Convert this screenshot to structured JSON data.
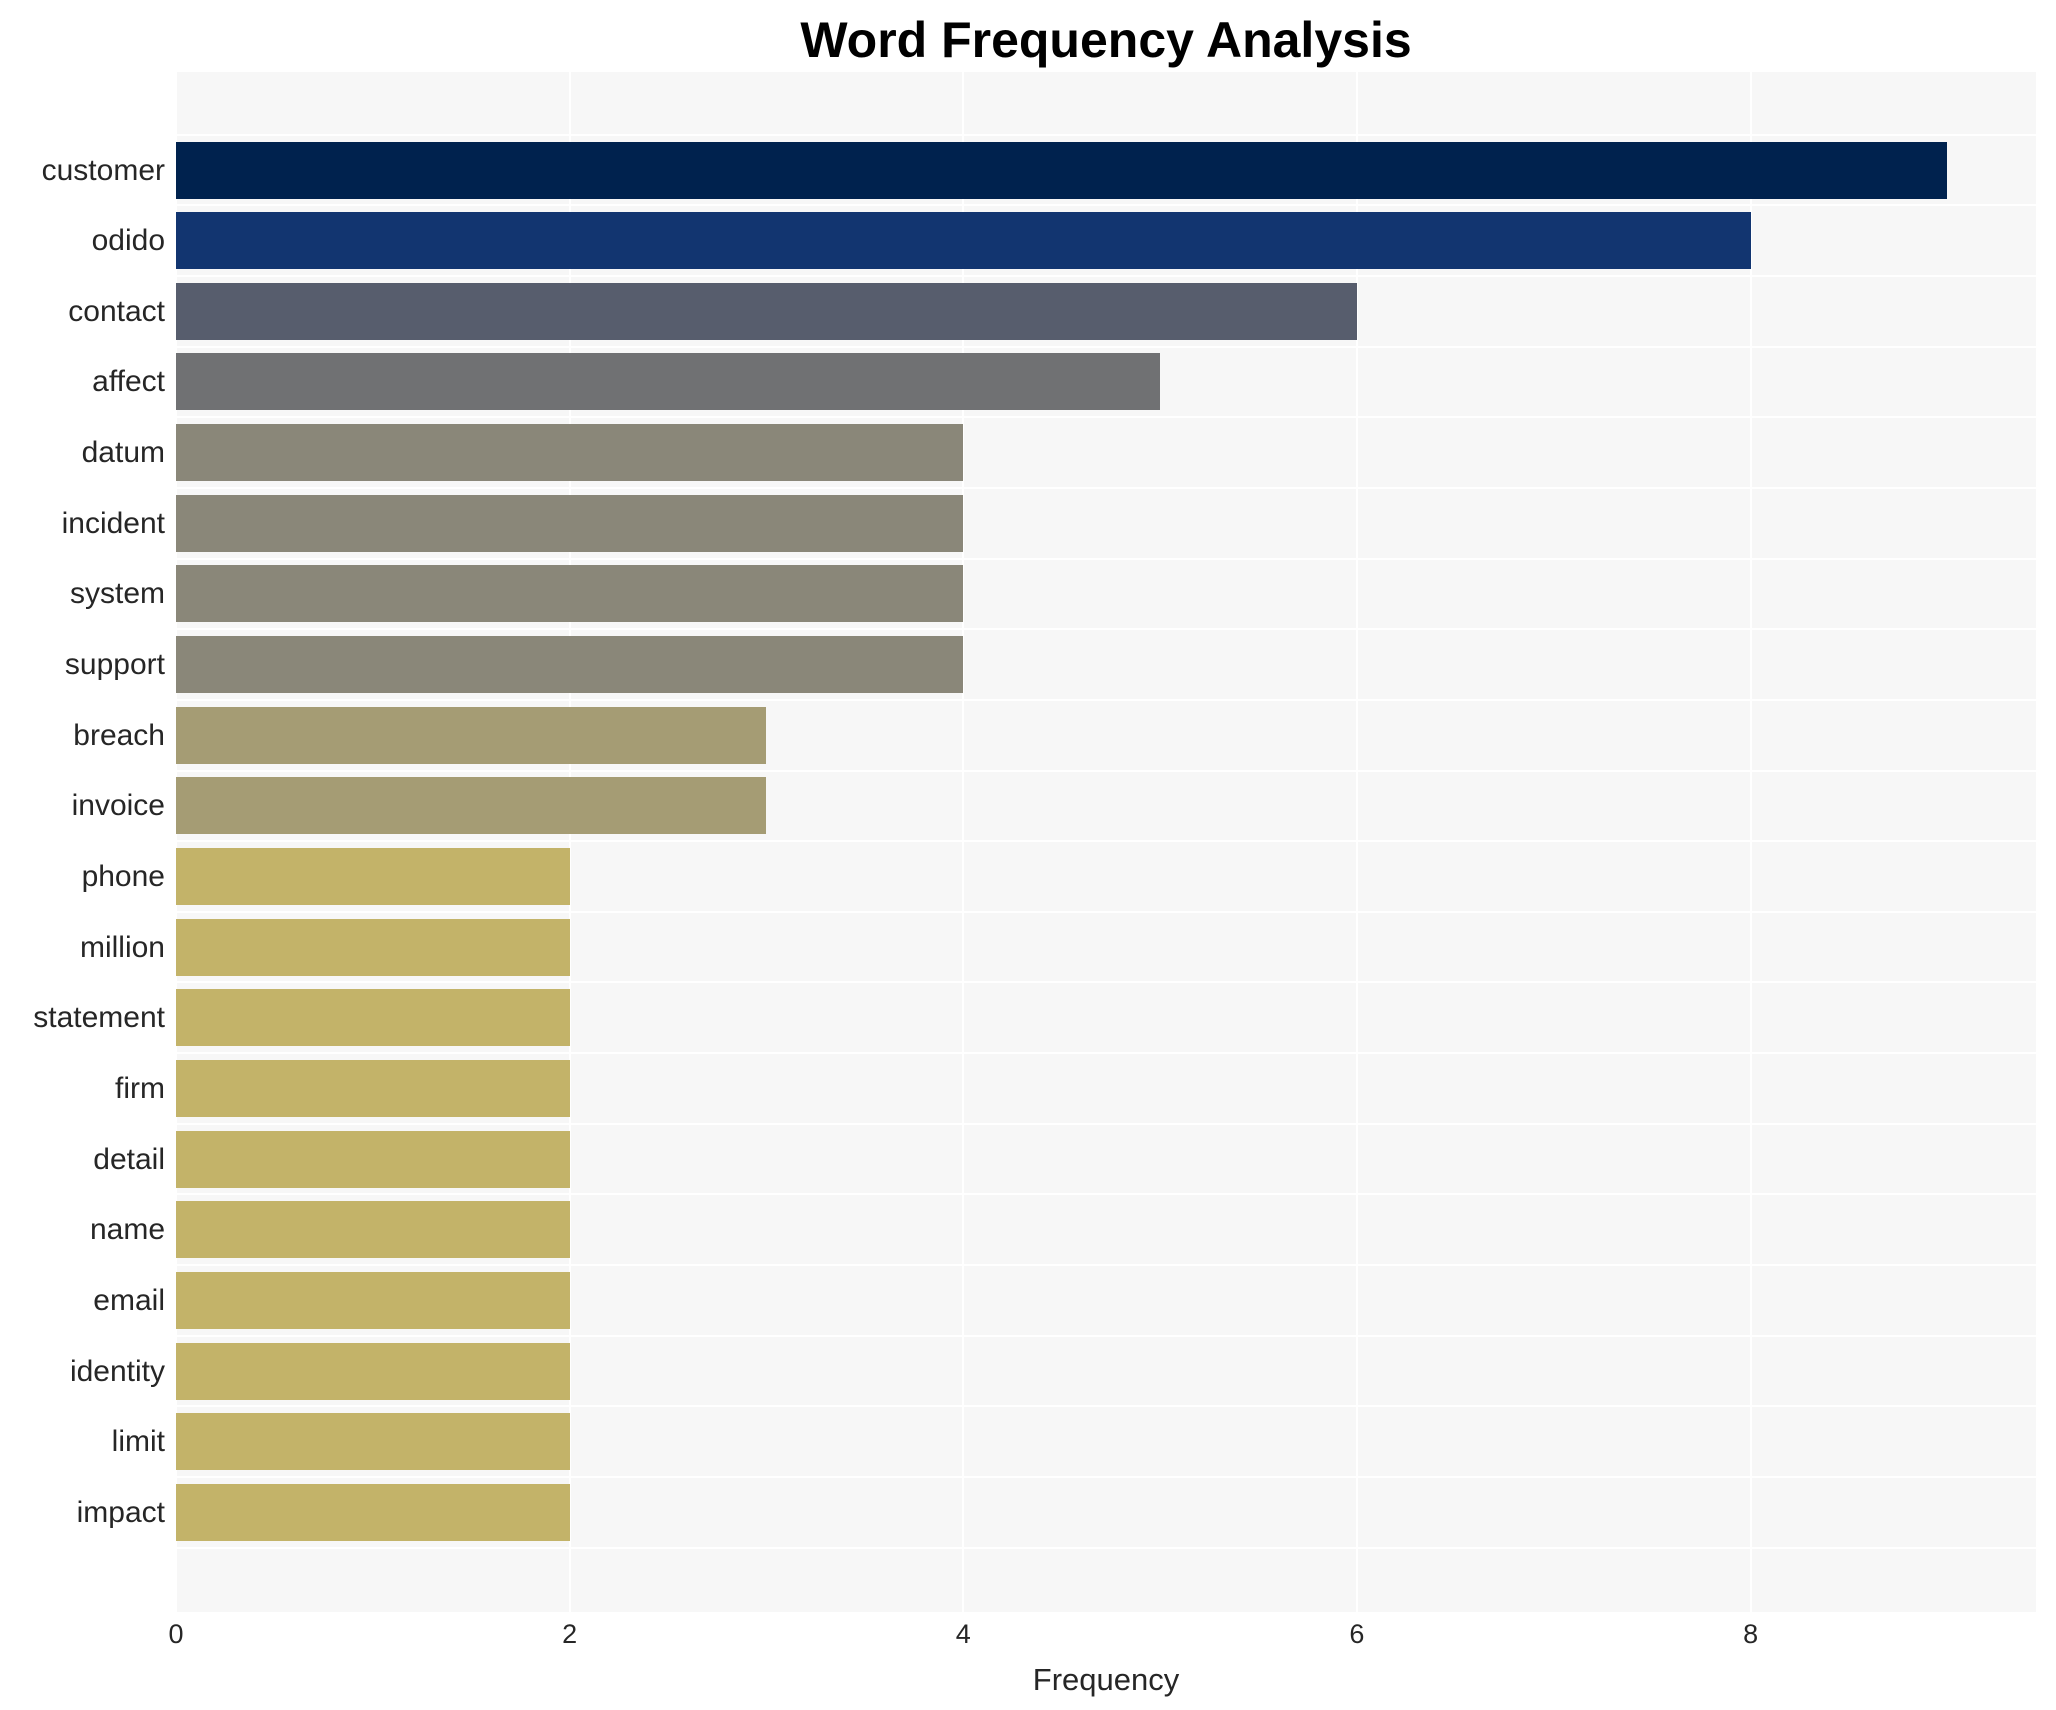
{
  "chart_data": {
    "type": "bar",
    "orientation": "horizontal",
    "title": "Word Frequency Analysis",
    "xlabel": "Frequency",
    "ylabel": "",
    "xlim": [
      0,
      9.45
    ],
    "xticks": [
      0,
      2,
      4,
      6,
      8
    ],
    "grid": true,
    "legend": null,
    "categories": [
      "customer",
      "odido",
      "contact",
      "affect",
      "datum",
      "incident",
      "system",
      "support",
      "breach",
      "invoice",
      "phone",
      "million",
      "statement",
      "firm",
      "detail",
      "name",
      "email",
      "identity",
      "limit",
      "impact"
    ],
    "values": [
      9,
      8,
      6,
      5,
      4,
      4,
      4,
      4,
      3,
      3,
      2,
      2,
      2,
      2,
      2,
      2,
      2,
      2,
      2,
      2
    ],
    "colors": [
      "#00224e",
      "#123570",
      "#575d6d",
      "#707173",
      "#8a8779",
      "#8a8779",
      "#8a8779",
      "#8a8779",
      "#a59c74",
      "#a59c74",
      "#c3b369",
      "#c3b369",
      "#c3b369",
      "#c3b369",
      "#c3b369",
      "#c3b369",
      "#c3b369",
      "#c3b369",
      "#c3b369",
      "#c3b369"
    ]
  },
  "labels": {
    "title": "Word Frequency Analysis",
    "xlabel": "Frequency",
    "xticks": [
      "0",
      "2",
      "4",
      "6",
      "8"
    ],
    "bars": [
      "customer",
      "odido",
      "contact",
      "affect",
      "datum",
      "incident",
      "system",
      "support",
      "breach",
      "invoice",
      "phone",
      "million",
      "statement",
      "firm",
      "detail",
      "name",
      "email",
      "identity",
      "limit",
      "impact"
    ]
  }
}
